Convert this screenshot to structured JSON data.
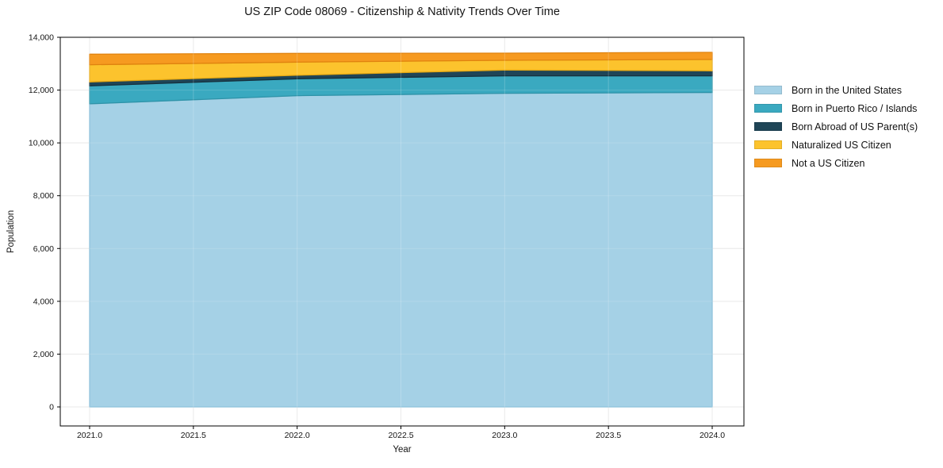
{
  "chart_data": {
    "type": "area",
    "stacked": true,
    "title": "US ZIP Code 08069 - Citizenship & Nativity Trends Over Time",
    "xlabel": "Year",
    "ylabel": "Population",
    "grid": true,
    "legend_position": "right-outside",
    "x": [
      2021,
      2022,
      2023,
      2024
    ],
    "x_tick_values": [
      2021,
      2021.5,
      2022,
      2022.5,
      2023,
      2023.5,
      2024
    ],
    "x_tick_labels": [
      "2021.0",
      "2021.5",
      "2022.0",
      "2022.5",
      "2023.0",
      "2023.5",
      "2024.0"
    ],
    "y_tick_values": [
      0,
      2000,
      4000,
      6000,
      8000,
      10000,
      12000,
      14000
    ],
    "y_tick_labels": [
      "0",
      "2,000",
      "4,000",
      "6,000",
      "8,000",
      "10,000",
      "12,000",
      "14,000"
    ],
    "xlim": [
      2020.86,
      2024.16
    ],
    "ylim": [
      -720,
      14000
    ],
    "series": [
      {
        "name": "Born in the United States",
        "color": "#a5d1e6",
        "edge_color": "#7fbad6",
        "values": [
          11480,
          11790,
          11880,
          11910
        ]
      },
      {
        "name": "Born in Puerto Rico / Islands",
        "color": "#3aa9c0",
        "edge_color": "#2e93a8",
        "values": [
          680,
          640,
          660,
          630
        ]
      },
      {
        "name": "Born Abroad of US Parent(s)",
        "color": "#1f4557",
        "edge_color": "#15303d",
        "values": [
          150,
          130,
          220,
          190
        ]
      },
      {
        "name": "Naturalized US Citizen",
        "color": "#fcc32d",
        "edge_color": "#e5a813",
        "values": [
          650,
          500,
          370,
          430
        ]
      },
      {
        "name": "Not a US Citizen",
        "color": "#f69a20",
        "edge_color": "#e0830f",
        "values": [
          400,
          330,
          270,
          270
        ]
      }
    ],
    "stacked_totals": [
      13360,
      13390,
      13400,
      13430
    ]
  }
}
